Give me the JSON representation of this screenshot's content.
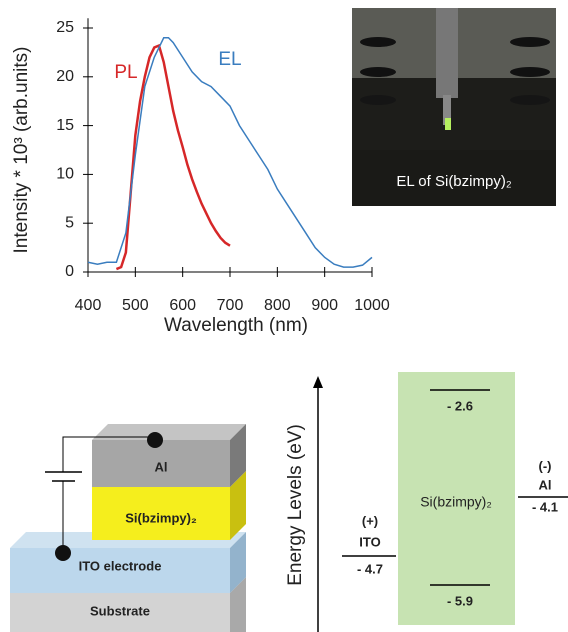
{
  "chart_data": {
    "type": "line",
    "xlabel": "Wavelength (nm)",
    "ylabel": "Intensity * 10³ (arb.units)",
    "xlim": [
      400,
      1000
    ],
    "ylim": [
      0,
      26
    ],
    "xticks": [
      400,
      500,
      600,
      700,
      800,
      900,
      1000
    ],
    "yticks": [
      0,
      5,
      10,
      15,
      20,
      25
    ],
    "series": [
      {
        "name": "PL",
        "color": "#d62728",
        "x": [
          460,
          470,
          480,
          490,
          500,
          510,
          520,
          530,
          540,
          550,
          560,
          570,
          580,
          590,
          600,
          610,
          620,
          630,
          640,
          650,
          660,
          670,
          680,
          690,
          700
        ],
        "values": [
          0.3,
          0.5,
          2,
          8,
          14,
          17.5,
          20,
          22,
          23,
          23.2,
          21.5,
          19,
          16.5,
          14.5,
          12.8,
          11,
          9.5,
          8.2,
          7,
          6,
          5,
          4.2,
          3.5,
          3,
          2.7
        ]
      },
      {
        "name": "EL",
        "color": "#3a7dbf",
        "x": [
          400,
          420,
          440,
          460,
          480,
          500,
          520,
          540,
          560,
          570,
          580,
          600,
          620,
          640,
          660,
          680,
          700,
          720,
          740,
          760,
          780,
          800,
          820,
          840,
          860,
          880,
          900,
          920,
          940,
          960,
          980,
          1000
        ],
        "values": [
          1,
          0.8,
          1,
          1,
          4,
          12,
          19,
          22,
          24,
          24,
          23.5,
          22,
          20.5,
          19.5,
          19,
          18,
          17,
          15,
          13.5,
          12,
          10.5,
          8.5,
          7,
          5.5,
          4,
          2.5,
          1.5,
          0.8,
          0.5,
          0.5,
          0.7,
          1.5
        ]
      }
    ]
  },
  "inset": {
    "caption": "EL of Si(bzimpy)₂"
  },
  "device": {
    "layers": [
      "Al",
      "Si(bzimpy)₂",
      "ITO electrode",
      "Substrate"
    ]
  },
  "energy_diagram": {
    "axis_label": "Energy Levels (eV)",
    "anode": {
      "sign": "(+)",
      "name": "ITO",
      "level": "- 4.7"
    },
    "cathode": {
      "sign": "(-)",
      "name": "Al",
      "level": "- 4.1"
    },
    "emitter": {
      "name": "Si(bzimpy)₂",
      "lumo": "- 2.6",
      "homo": "- 5.9"
    }
  }
}
